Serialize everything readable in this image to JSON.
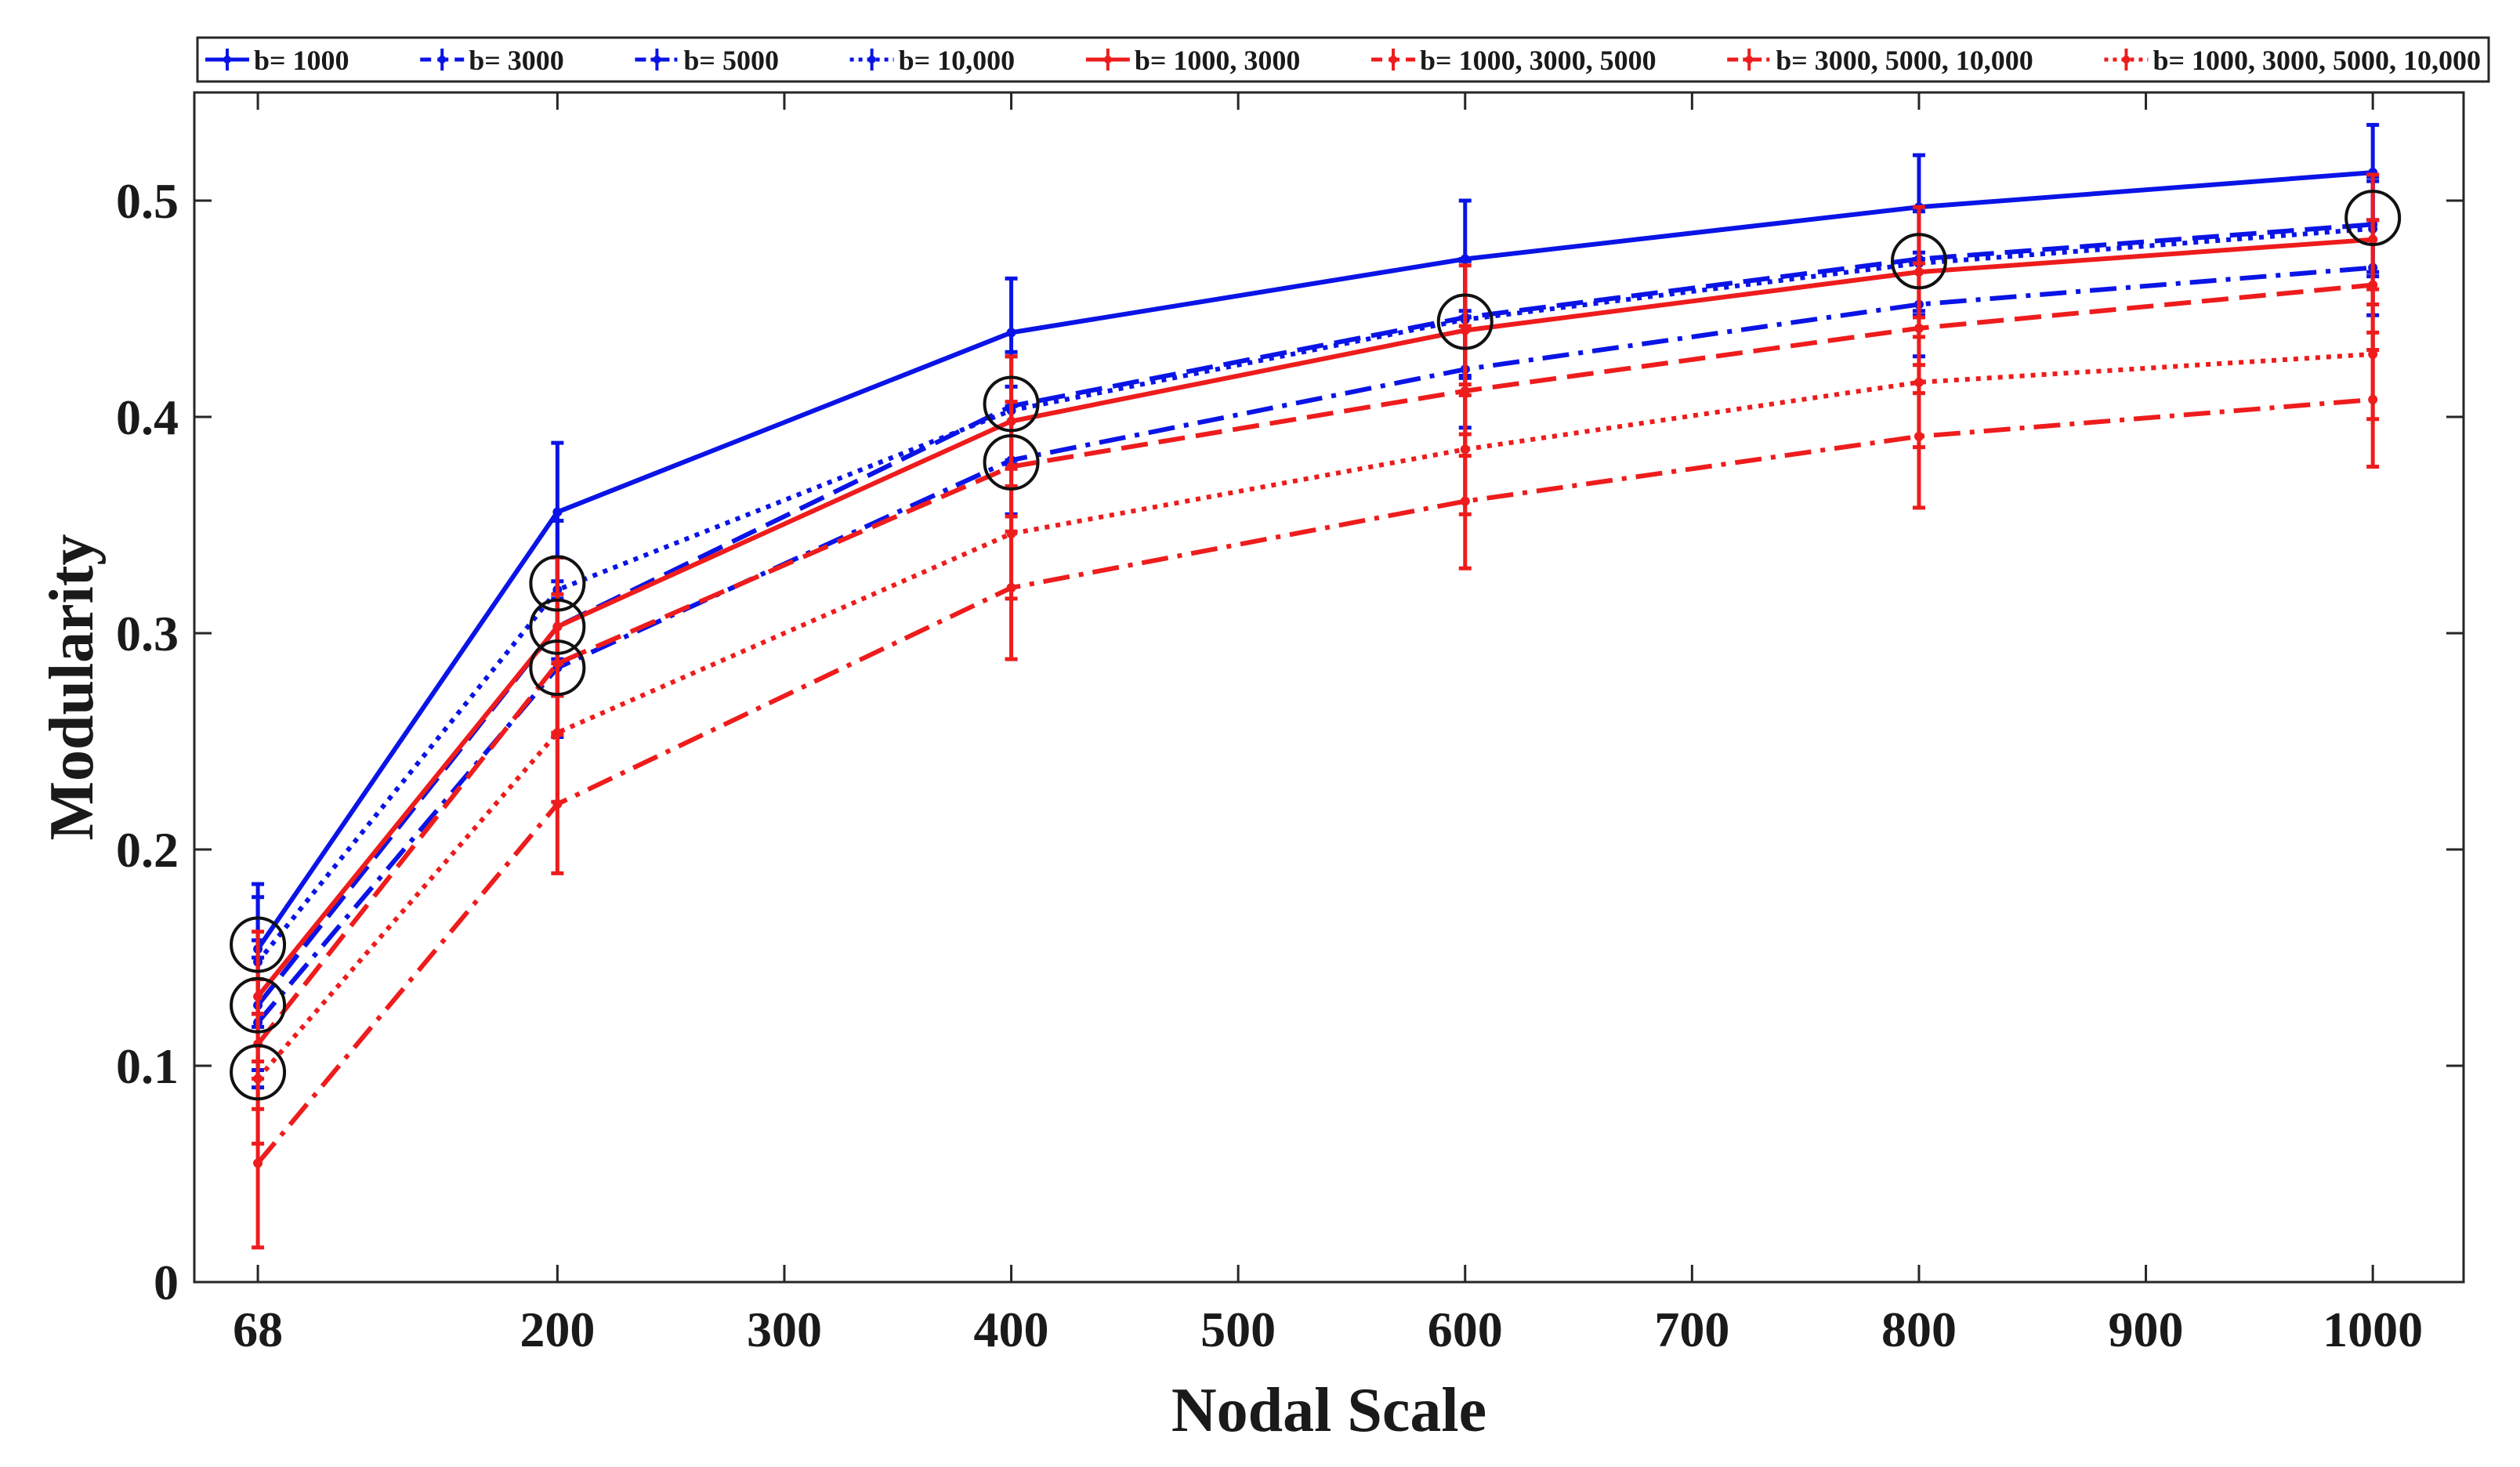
{
  "chart_data": {
    "type": "line",
    "title": "",
    "xlabel": "Nodal Scale",
    "ylabel": "Modularity",
    "x": [
      68,
      200,
      400,
      600,
      800,
      1000
    ],
    "x_ticks": [
      68,
      200,
      300,
      400,
      500,
      600,
      700,
      800,
      900,
      1000
    ],
    "x_tick_labels": [
      "68",
      "200",
      "300",
      "400",
      "500",
      "600",
      "700",
      "800",
      "900",
      "1000"
    ],
    "y_ticks": [
      0,
      0.1,
      0.2,
      0.3,
      0.4,
      0.5
    ],
    "y_tick_labels": [
      "0",
      "0.1",
      "0.2",
      "0.3",
      "0.4",
      "0.5"
    ],
    "xlim": [
      40,
      1040
    ],
    "ylim": [
      0,
      0.55
    ],
    "grid": false,
    "legend_position": "top",
    "series": [
      {
        "name": "b= 1000",
        "color": "#0a14e6",
        "dash": "solid",
        "values": [
          0.154,
          0.356,
          0.439,
          0.473,
          0.497,
          0.513
        ],
        "errors": [
          0.03,
          0.032,
          0.025,
          0.027,
          0.024,
          0.022
        ]
      },
      {
        "name": "b= 3000",
        "color": "#0a14e6",
        "dash": "dashed",
        "values": [
          0.128,
          0.303,
          0.405,
          0.446,
          0.473,
          0.489
        ],
        "errors": [
          0.03,
          0.032,
          0.025,
          0.027,
          0.024,
          0.022
        ]
      },
      {
        "name": "b= 5000",
        "color": "#0a14e6",
        "dash": "dashdot",
        "values": [
          0.12,
          0.284,
          0.38,
          0.422,
          0.452,
          0.469
        ],
        "errors": [
          0.03,
          0.032,
          0.025,
          0.027,
          0.024,
          0.022
        ]
      },
      {
        "name": "b= 10,000",
        "color": "#0a14e6",
        "dash": "dotted",
        "values": [
          0.148,
          0.32,
          0.403,
          0.445,
          0.471,
          0.487
        ],
        "errors": [
          0.03,
          0.032,
          0.025,
          0.027,
          0.024,
          0.022
        ]
      },
      {
        "name": "b= 1000, 3000",
        "color": "#ee1c1c",
        "dash": "solid",
        "values": [
          0.132,
          0.303,
          0.398,
          0.44,
          0.467,
          0.482
        ],
        "errors": [
          0.03,
          0.032,
          0.03,
          0.03,
          0.03,
          0.03
        ]
      },
      {
        "name": "b= 1000, 3000, 5000",
        "color": "#ee1c1c",
        "dash": "dashed",
        "values": [
          0.11,
          0.286,
          0.377,
          0.412,
          0.441,
          0.461
        ],
        "errors": [
          0.03,
          0.032,
          0.03,
          0.03,
          0.03,
          0.03
        ]
      },
      {
        "name": "b= 3000, 5000, 10,000",
        "color": "#ee1c1c",
        "dash": "dashdot",
        "values": [
          0.055,
          0.221,
          0.321,
          0.361,
          0.391,
          0.408
        ],
        "errors": [
          0.039,
          0.032,
          0.033,
          0.031,
          0.033,
          0.031
        ]
      },
      {
        "name": "b= 1000, 3000, 5000, 10,000",
        "color": "#ee1c1c",
        "dash": "dotted",
        "values": [
          0.094,
          0.254,
          0.346,
          0.385,
          0.416,
          0.429
        ],
        "errors": [
          0.03,
          0.032,
          0.03,
          0.03,
          0.03,
          0.03
        ]
      }
    ],
    "circle_markers": [
      {
        "x": 68,
        "y": 0.156
      },
      {
        "x": 68,
        "y": 0.128
      },
      {
        "x": 68,
        "y": 0.097
      },
      {
        "x": 200,
        "y": 0.323
      },
      {
        "x": 200,
        "y": 0.303
      },
      {
        "x": 200,
        "y": 0.284
      },
      {
        "x": 400,
        "y": 0.406
      },
      {
        "x": 400,
        "y": 0.379
      },
      {
        "x": 600,
        "y": 0.444
      },
      {
        "x": 800,
        "y": 0.472
      },
      {
        "x": 1000,
        "y": 0.492
      }
    ]
  }
}
